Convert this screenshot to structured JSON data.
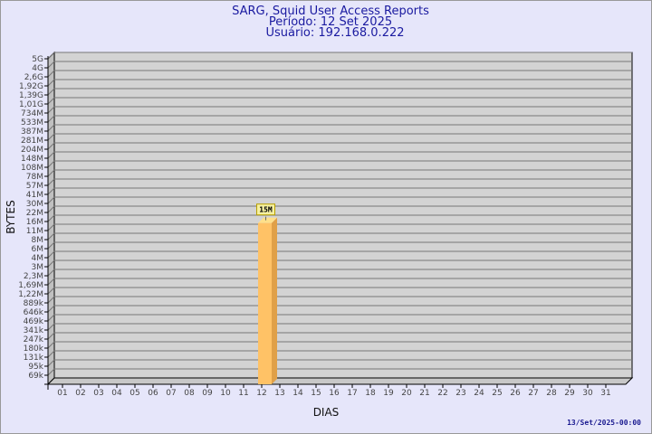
{
  "chart_data": {
    "type": "bar",
    "title": "SARG, Squid User Access Reports",
    "subtitle_lines": [
      "Período: 12 Set 2025",
      "Usuário: 192.168.0.222"
    ],
    "xlabel": "DIAS",
    "ylabel": "BYTES",
    "y_scale": "log",
    "y_tick_labels": [
      "5G",
      "4G",
      "2,6G",
      "1,92G",
      "1,39G",
      "1,01G",
      "734M",
      "533M",
      "387M",
      "281M",
      "204M",
      "148M",
      "108M",
      "78M",
      "57M",
      "41M",
      "30M",
      "22M",
      "16M",
      "11M",
      "8M",
      "6M",
      "4M",
      "3M",
      "2,3M",
      "1,69M",
      "1,22M",
      "889k",
      "646k",
      "469k",
      "341k",
      "247k",
      "180k",
      "131k",
      "95k",
      "69k"
    ],
    "ylim": [
      69000,
      5000000000
    ],
    "categories": [
      "01",
      "02",
      "03",
      "04",
      "05",
      "06",
      "07",
      "08",
      "09",
      "10",
      "11",
      "12",
      "13",
      "14",
      "15",
      "16",
      "17",
      "18",
      "19",
      "20",
      "21",
      "22",
      "23",
      "24",
      "25",
      "26",
      "27",
      "28",
      "29",
      "30",
      "31"
    ],
    "bars": [
      {
        "category": "12",
        "value": 15000000,
        "label": "15M"
      }
    ],
    "grid": true,
    "bar_color": "#ffc266",
    "background_color": "#e6e6fa",
    "plot_color": "#d3d3d3"
  },
  "footer": {
    "timestamp": "13/Set/2025-00:00"
  }
}
